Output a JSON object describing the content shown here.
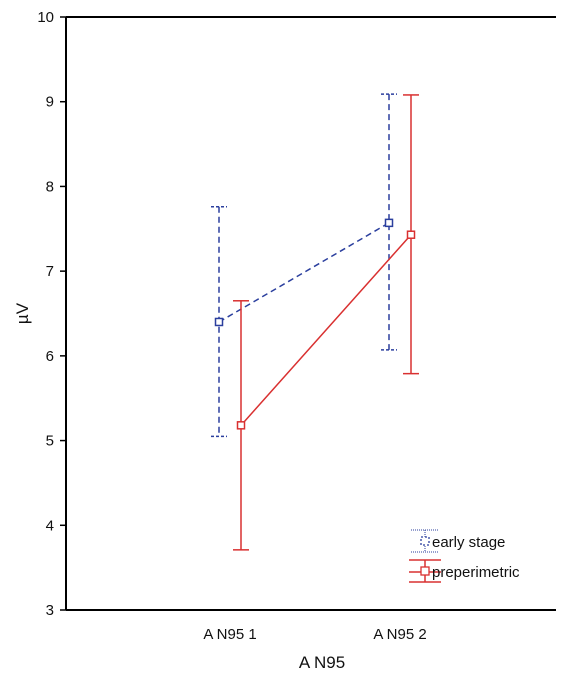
{
  "chart_data": {
    "type": "line",
    "title": "",
    "xlabel": "A N95",
    "ylabel": "µV",
    "categories": [
      "A N95 1",
      "A N95 2"
    ],
    "ylim": [
      3,
      10
    ],
    "yticks": [
      "3",
      "4",
      "5",
      "6",
      "7",
      "8",
      "9",
      "10"
    ],
    "grid": false,
    "legend_position": "bottom-right",
    "error_bars": true,
    "series": [
      {
        "name": "early stage",
        "color": "#2b3f9e",
        "line_style": "dashed",
        "marker": "square",
        "values": [
          6.4,
          7.57
        ],
        "lower": [
          5.05,
          6.07
        ],
        "upper": [
          7.76,
          9.09
        ]
      },
      {
        "name": "preperimetric",
        "color": "#d93030",
        "line_style": "solid",
        "marker": "square",
        "values": [
          5.18,
          7.43
        ],
        "lower": [
          3.71,
          5.79
        ],
        "upper": [
          6.65,
          9.08
        ]
      }
    ]
  }
}
